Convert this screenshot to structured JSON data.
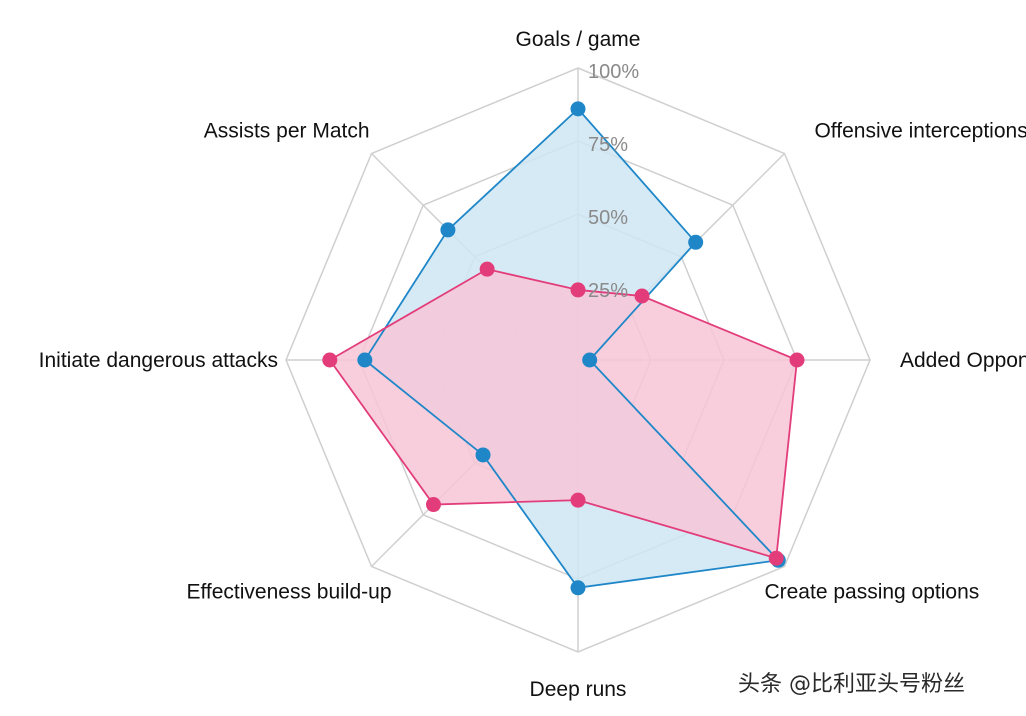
{
  "chart_data": {
    "type": "radar",
    "axes": [
      "Goals / game",
      "Offensive interceptions",
      "Added Opponents",
      "Create passing options",
      "Deep runs",
      "Effectiveness build-up",
      "Initiate dangerous attacks",
      "Assists per Match"
    ],
    "ticks": [
      "25%",
      "50%",
      "75%",
      "100%"
    ],
    "tick_values": [
      25,
      50,
      75,
      100
    ],
    "range": [
      0,
      100
    ],
    "grid": true,
    "series": [
      {
        "color": "#1f87c8",
        "fill": "#cfe6f3",
        "values": [
          86,
          57,
          4,
          97,
          78,
          46,
          73,
          63
        ]
      },
      {
        "color": "#e23d7a",
        "fill": "#f7c6d7",
        "values": [
          24,
          31,
          75,
          96,
          48,
          70,
          85,
          44
        ]
      }
    ]
  },
  "watermark": "头条 @比利亚头号粉丝"
}
